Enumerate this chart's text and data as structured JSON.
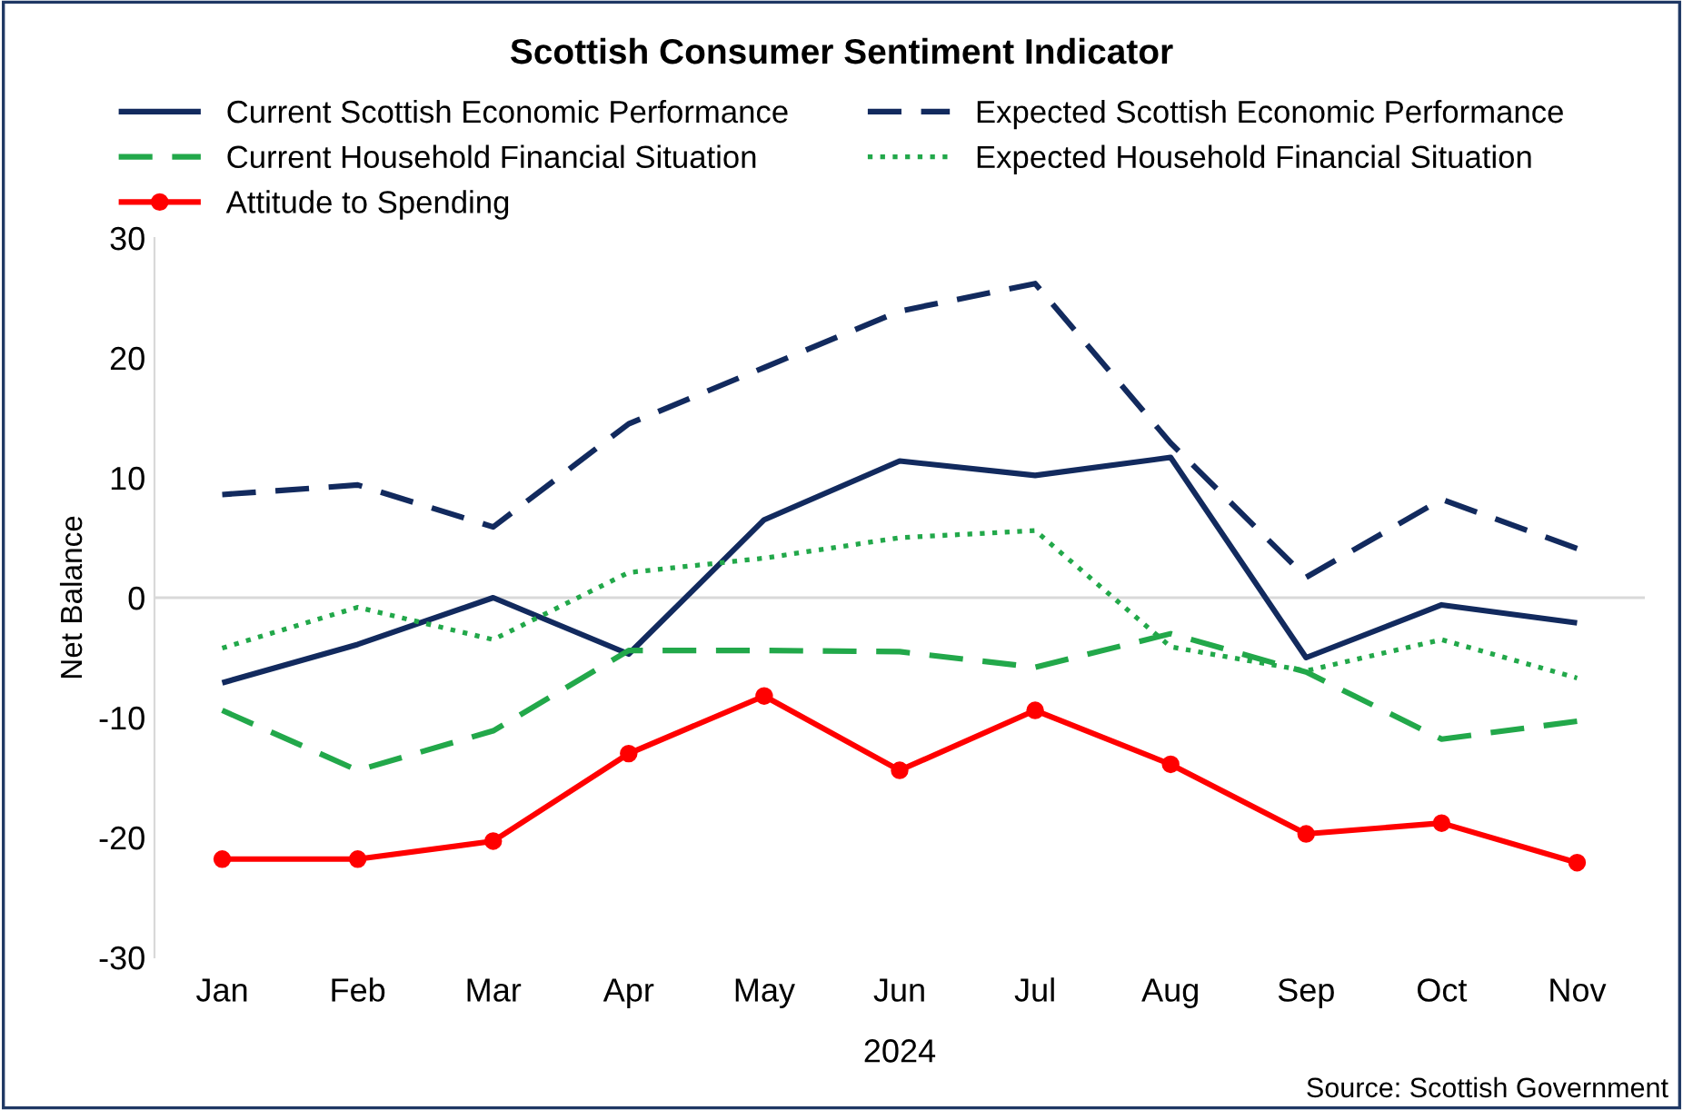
{
  "chart_data": {
    "type": "line",
    "title": "Scottish Consumer Sentiment Indicator",
    "xlabel": "2024",
    "ylabel": "Net Balance",
    "categories": [
      "Jan",
      "Feb",
      "Mar",
      "Apr",
      "May",
      "Jun",
      "Jul",
      "Aug",
      "Sep",
      "Oct",
      "Nov"
    ],
    "series": [
      {
        "name": "Current Scottish Economic Performance",
        "color": "#122a5e",
        "line_style": "solid",
        "marker": "none",
        "values": [
          -7.1,
          -3.9,
          0,
          -4.7,
          6.5,
          11.4,
          10.2,
          11.7,
          -5,
          -0.6,
          -2.1
        ]
      },
      {
        "name": "Expected Scottish Economic Performance",
        "color": "#122a5e",
        "line_style": "dashed",
        "marker": "none",
        "values": [
          8.6,
          9.4,
          5.9,
          14.5,
          19.2,
          23.9,
          26.2,
          12.9,
          1.7,
          8.2,
          4.1
        ]
      },
      {
        "name": "Current Household Financial Situation",
        "color": "#22a84a",
        "line_style": "dashed",
        "marker": "none",
        "values": [
          -9.4,
          -14.4,
          -11.1,
          -4.4,
          -4.4,
          -4.5,
          -5.8,
          -3,
          -6.2,
          -11.8,
          -10.3
        ]
      },
      {
        "name": "Expected Household Financial Situation",
        "color": "#22a84a",
        "line_style": "dotted",
        "marker": "none",
        "values": [
          -4.2,
          -0.8,
          -3.5,
          2.1,
          3.3,
          5,
          5.6,
          -4.1,
          -6.1,
          -3.5,
          -6.7
        ]
      },
      {
        "name": "Attitude to Spending",
        "color": "#ff0000",
        "line_style": "solid",
        "marker": "circle",
        "values": [
          -21.8,
          -21.8,
          -20.3,
          -13,
          -8.2,
          -14.4,
          -9.4,
          -13.9,
          -19.7,
          -18.8,
          -22.1
        ]
      }
    ],
    "ref_lines": [
      {
        "axis": "y",
        "value": 0,
        "color": "#d9d9d9"
      }
    ],
    "ylim": [
      -30,
      30
    ],
    "yticks": [
      -30,
      -20,
      -10,
      0,
      10,
      20,
      30
    ],
    "grid": false,
    "legend": "top",
    "annotations": [
      "Source: Scottish Government"
    ]
  }
}
